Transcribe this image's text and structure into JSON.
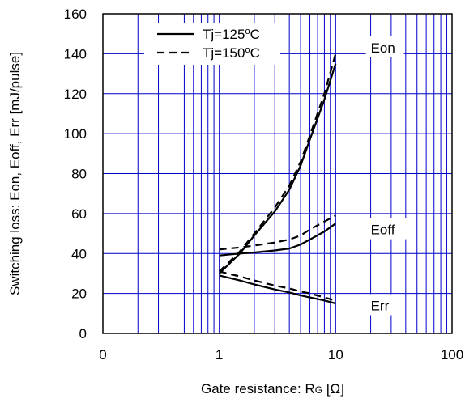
{
  "chart_data": {
    "type": "line",
    "xscale": "log",
    "xlim": [
      0.1,
      100
    ],
    "ylim": [
      0,
      160
    ],
    "xlabel": "Gate resistance: R",
    "xlabel_sub": "G",
    "xlabel_unit": " [Ω]",
    "ylabel": "Switching loss: Eon, Eoff, Err [mJ/pulse]",
    "x_ticks": [
      {
        "value": 0.1,
        "label": "0"
      },
      {
        "value": 1,
        "label": "1"
      },
      {
        "value": 10,
        "label": "10"
      },
      {
        "value": 100,
        "label": "100"
      }
    ],
    "y_ticks": [
      {
        "value": 0,
        "label": "0"
      },
      {
        "value": 20,
        "label": "20"
      },
      {
        "value": 40,
        "label": "40"
      },
      {
        "value": 60,
        "label": "60"
      },
      {
        "value": 80,
        "label": "80"
      },
      {
        "value": 100,
        "label": "100"
      },
      {
        "value": 120,
        "label": "120"
      },
      {
        "value": 140,
        "label": "140"
      },
      {
        "value": 160,
        "label": "160"
      }
    ],
    "grid": true,
    "grid_color": "#0000cc",
    "legend": {
      "placement": "top-left",
      "entries": [
        {
          "name": "Tj=125",
          "sup": "o",
          "unit": "C",
          "style": "solid"
        },
        {
          "name": "Tj=150",
          "sup": "o",
          "unit": "C",
          "style": "dashed"
        }
      ]
    },
    "series": [
      {
        "name": "Eon",
        "temp": "125",
        "style": "solid",
        "x": [
          1,
          1.5,
          2,
          3,
          4,
          5,
          6,
          8,
          10
        ],
        "y": [
          30,
          40,
          49,
          61,
          72,
          84,
          97,
          117,
          135
        ]
      },
      {
        "name": "Eon",
        "temp": "150",
        "style": "dashed",
        "x": [
          1,
          1.5,
          2,
          3,
          4,
          5,
          6,
          8,
          10
        ],
        "y": [
          31,
          41,
          50,
          63,
          74,
          86,
          99,
          120,
          140
        ]
      },
      {
        "name": "Eoff",
        "temp": "125",
        "style": "solid",
        "x": [
          1,
          1.5,
          2,
          3,
          4,
          5,
          6,
          8,
          10
        ],
        "y": [
          39,
          40,
          40.5,
          41.5,
          42.5,
          44.5,
          47,
          51,
          55
        ]
      },
      {
        "name": "Eoff",
        "temp": "150",
        "style": "dashed",
        "x": [
          1,
          1.5,
          2,
          3,
          4,
          5,
          6,
          8,
          10
        ],
        "y": [
          42,
          43,
          44,
          45.5,
          47,
          49,
          52,
          56,
          59
        ]
      },
      {
        "name": "Err",
        "temp": "125",
        "style": "solid",
        "x": [
          1,
          1.5,
          2,
          3,
          4,
          5,
          6,
          8,
          10
        ],
        "y": [
          29,
          26.5,
          24.5,
          22,
          20.5,
          19,
          18,
          16.5,
          15
        ]
      },
      {
        "name": "Err",
        "temp": "150",
        "style": "dashed",
        "x": [
          1,
          1.5,
          2,
          3,
          4,
          5,
          6,
          8,
          10
        ],
        "y": [
          31,
          28.5,
          26.5,
          24,
          22.5,
          21,
          20,
          18,
          16.5
        ]
      }
    ],
    "curve_labels": [
      {
        "text": "Eon",
        "x": 20,
        "y": 143
      },
      {
        "text": "Eoff",
        "x": 20,
        "y": 52
      },
      {
        "text": "Err",
        "x": 20,
        "y": 14
      }
    ]
  }
}
